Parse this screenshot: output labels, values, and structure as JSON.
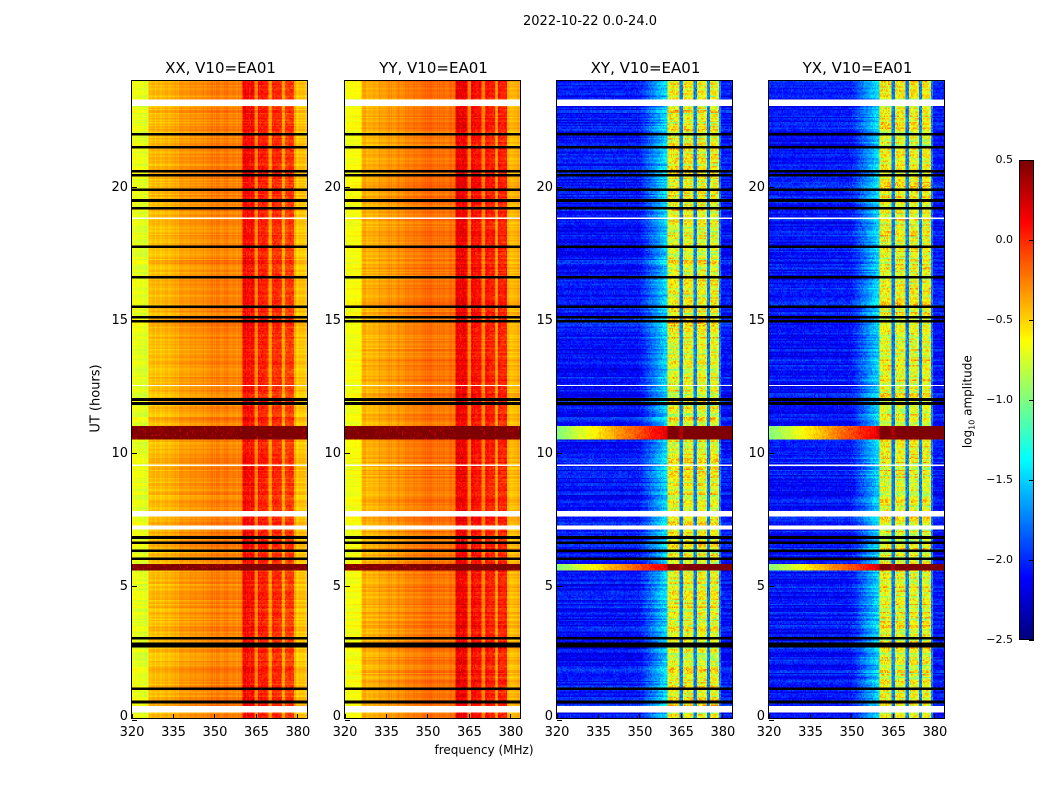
{
  "chart_data": {
    "type": "heatmap",
    "title": "2022-10-22 0.0-24.0",
    "xlabel": "frequency (MHz)",
    "ylabel": "UT (hours)",
    "xlim": [
      320,
      384
    ],
    "ylim": [
      0,
      24
    ],
    "xticks": [
      320,
      335,
      350,
      365,
      380
    ],
    "yticks": [
      0,
      5,
      10,
      15,
      20
    ],
    "colormap": "jet",
    "colorbar": {
      "label": "log10 amplitude",
      "label_main": "log",
      "label_sub": "10",
      "label_rest": " amplitude",
      "range": [
        -2.5,
        0.5
      ],
      "ticks": [
        "0.5",
        "0.0",
        "−0.5",
        "−1.0",
        "−1.5",
        "−2.0",
        "−2.5"
      ],
      "tick_values": [
        0.5,
        0.0,
        -0.5,
        -1.0,
        -1.5,
        -2.0,
        -2.5
      ]
    },
    "panels": [
      {
        "title": "XX, V10=EA01",
        "kind": "parallel",
        "baseline": -0.35,
        "rfi_level": 0.15
      },
      {
        "title": "YY, V10=EA01",
        "kind": "parallel",
        "baseline": -0.3,
        "rfi_level": 0.2
      },
      {
        "title": "XY, V10=EA01",
        "kind": "cross",
        "baseline": -2.2,
        "rfi_level": -0.75
      },
      {
        "title": "YX, V10=EA01",
        "kind": "cross",
        "baseline": -2.2,
        "rfi_level": -0.75
      }
    ],
    "rfi_bands_mhz": [
      [
        360.5,
        364.8
      ],
      [
        366.2,
        369.9
      ],
      [
        371.3,
        374.9
      ],
      [
        376.0,
        379.2
      ]
    ],
    "bright_rows_hours": [
      [
        10.5,
        11.0
      ],
      [
        5.55,
        5.8
      ]
    ],
    "flagged_rows_hours": [
      [
        23.05,
        23.3
      ],
      [
        0.2,
        0.45
      ],
      [
        7.6,
        7.8
      ],
      [
        7.1,
        7.25
      ],
      [
        18.8,
        18.85
      ],
      [
        12.5,
        12.55
      ],
      [
        9.5,
        9.55
      ]
    ],
    "dark_rows_hours": [
      20.6,
      20.45,
      19.9,
      19.5,
      19.2,
      17.75,
      15.5,
      15.1,
      14.95,
      12.0,
      11.85,
      6.8,
      6.6,
      6.3,
      6.0,
      3.0,
      2.8,
      2.7,
      1.1,
      0.6,
      22.0,
      21.5,
      16.6
    ]
  }
}
